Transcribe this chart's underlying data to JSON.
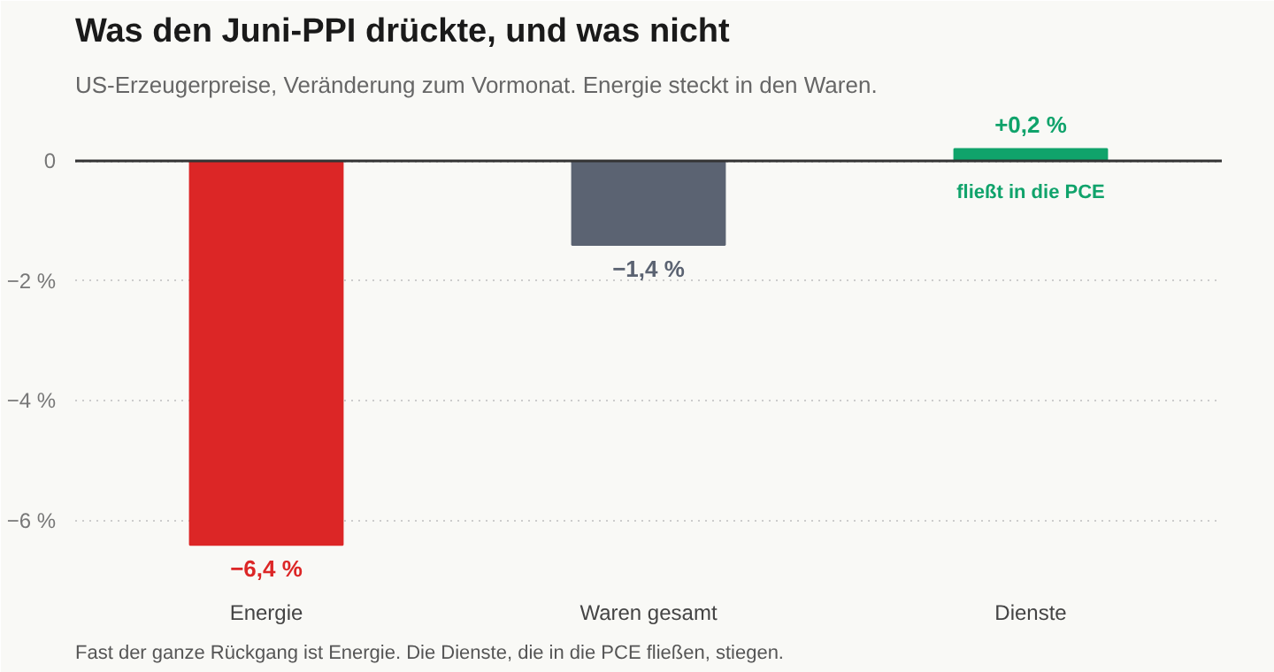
{
  "chart_data": {
    "type": "bar",
    "title": "Was den Juni-PPI drückte, und was nicht",
    "subtitle": "US-Erzeugerpreise, Veränderung zum Vormonat. Energie steckt in den Waren.",
    "categories": [
      "Energie",
      "Waren gesamt",
      "Dienste"
    ],
    "values": [
      -6.4,
      -1.4,
      0.2
    ],
    "colors": [
      "#dc2626",
      "#5b6372",
      "#10a36b"
    ],
    "value_labels": [
      "−6,4 %",
      "−1,4 %",
      "+0,2 %"
    ],
    "ylim": [
      -7.0,
      0.9
    ],
    "yticks": [
      {
        "value": 0,
        "label": "0"
      },
      {
        "value": -2,
        "label": "−2 %"
      },
      {
        "value": -4,
        "label": "−4 %"
      },
      {
        "value": -6,
        "label": "−6 %"
      }
    ],
    "grid": "y",
    "ref_lines": [
      {
        "axis": "y",
        "value": 0,
        "color": "#333333"
      }
    ],
    "annotations": [
      "fließt in die PCE",
      "Fast der ganze Rückgang ist Energie. Die Dienste, die in die PCE fließen, stiegen."
    ]
  }
}
